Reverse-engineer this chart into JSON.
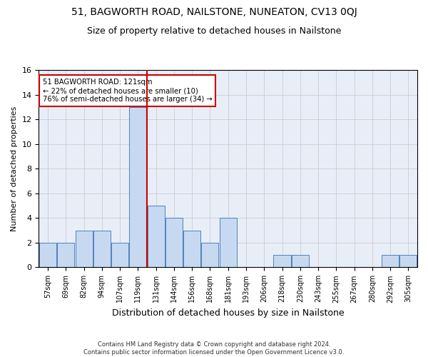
{
  "title": "51, BAGWORTH ROAD, NAILSTONE, NUNEATON, CV13 0QJ",
  "subtitle": "Size of property relative to detached houses in Nailstone",
  "xlabel": "Distribution of detached houses by size in Nailstone",
  "ylabel": "Number of detached properties",
  "categories": [
    "57sqm",
    "69sqm",
    "82sqm",
    "94sqm",
    "107sqm",
    "119sqm",
    "131sqm",
    "144sqm",
    "156sqm",
    "168sqm",
    "181sqm",
    "193sqm",
    "206sqm",
    "218sqm",
    "230sqm",
    "243sqm",
    "255sqm",
    "267sqm",
    "280sqm",
    "292sqm",
    "305sqm"
  ],
  "values": [
    2,
    2,
    3,
    3,
    2,
    13,
    5,
    4,
    3,
    2,
    4,
    0,
    0,
    1,
    1,
    0,
    0,
    0,
    0,
    1,
    1
  ],
  "bar_color": "#c6d9f1",
  "bar_edge_color": "#4f81bd",
  "highlight_line_color": "#cc0000",
  "annotation_line1": "51 BAGWORTH ROAD: 121sqm",
  "annotation_line2": "← 22% of detached houses are smaller (10)",
  "annotation_line3": "76% of semi-detached houses are larger (34) →",
  "annotation_box_color": "#ffffff",
  "annotation_box_edge_color": "#cc0000",
  "ylim": [
    0,
    16
  ],
  "yticks": [
    0,
    2,
    4,
    6,
    8,
    10,
    12,
    14,
    16
  ],
  "grid_color": "#cccccc",
  "plot_bg_color": "#e8eef8",
  "background_color": "#ffffff",
  "footer": "Contains HM Land Registry data © Crown copyright and database right 2024.\nContains public sector information licensed under the Open Government Licence v3.0.",
  "title_fontsize": 10,
  "subtitle_fontsize": 9,
  "axis_label_fontsize": 8,
  "tick_fontsize": 7,
  "bar_width": 0.95
}
